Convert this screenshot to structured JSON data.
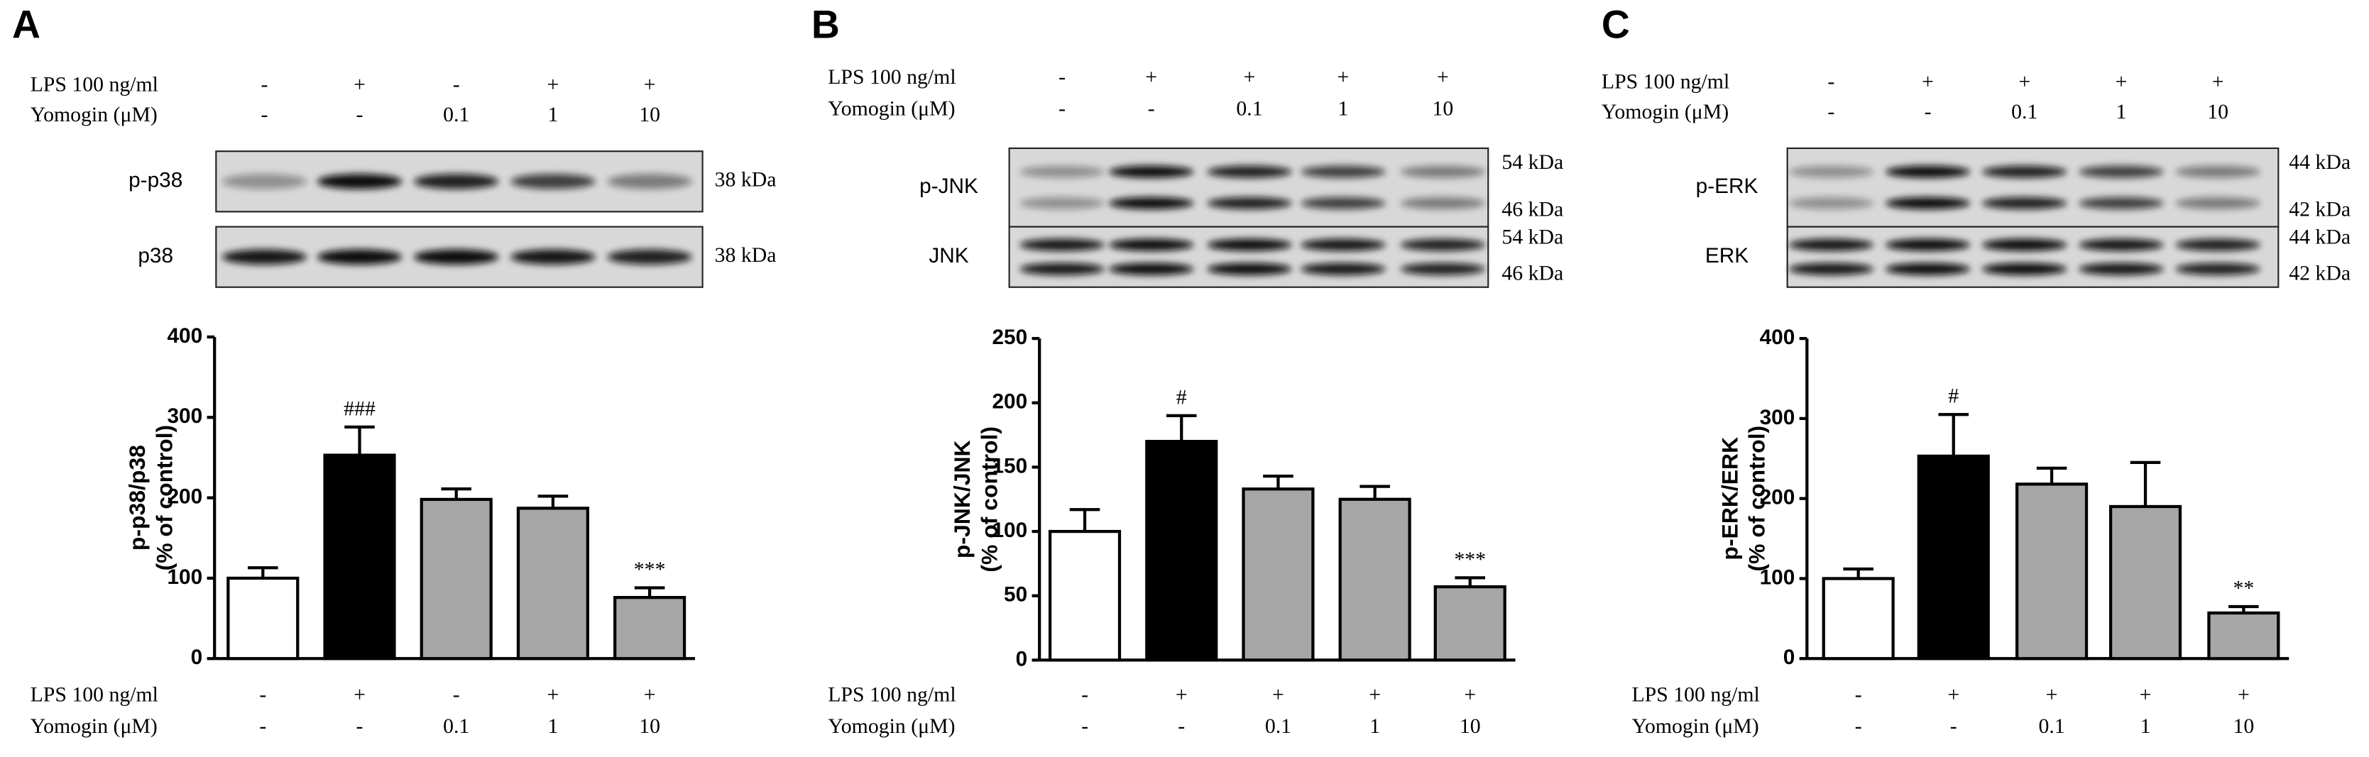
{
  "chart_data": [
    {
      "type": "bar",
      "panel": "A",
      "ylabel": [
        "p-p38/p38",
        "(% of control)"
      ],
      "treatments": [
        {
          "label": "LPS 100 ng/ml",
          "values": [
            "-",
            "+",
            "-",
            "+",
            "+"
          ]
        },
        {
          "label": "Yomogin (μM)",
          "values": [
            "-",
            "-",
            "0.1",
            "1",
            "10"
          ]
        }
      ],
      "blots": [
        {
          "label": "p-p38",
          "kda": [
            "38 kDa"
          ]
        },
        {
          "label": "p38",
          "kda": [
            "38 kDa"
          ]
        }
      ],
      "values": [
        100,
        253,
        198,
        187,
        76
      ],
      "errors": [
        13,
        35,
        13,
        15,
        12
      ],
      "annotations": [
        null,
        "###",
        null,
        null,
        "***"
      ],
      "colors": [
        "#ffffff",
        "#000000",
        "#a6a6a6",
        "#a6a6a6",
        "#a6a6a6"
      ],
      "ylim": [
        0,
        400
      ],
      "yticks": [
        0,
        100,
        200,
        300,
        400
      ]
    },
    {
      "type": "bar",
      "panel": "B",
      "ylabel": [
        "p-JNK/JNK",
        "(% of control)"
      ],
      "treatments": [
        {
          "label": "LPS 100 ng/ml",
          "values": [
            "-",
            "+",
            "+",
            "+",
            "+"
          ]
        },
        {
          "label": "Yomogin (μM)",
          "values": [
            "-",
            "-",
            "0.1",
            "1",
            "10"
          ]
        }
      ],
      "blots": [
        {
          "label": "p-JNK",
          "kda": [
            "54 kDa",
            "46 kDa"
          ]
        },
        {
          "label": "JNK",
          "kda": [
            "54 kDa",
            "46 kDa"
          ]
        }
      ],
      "values": [
        100,
        170,
        133,
        125,
        57
      ],
      "errors": [
        17,
        20,
        10,
        10,
        7
      ],
      "annotations": [
        null,
        "#",
        null,
        null,
        "***"
      ],
      "colors": [
        "#ffffff",
        "#000000",
        "#a6a6a6",
        "#a6a6a6",
        "#a6a6a6"
      ],
      "ylim": [
        0,
        250
      ],
      "yticks": [
        0,
        50,
        100,
        150,
        200,
        250
      ]
    },
    {
      "type": "bar",
      "panel": "C",
      "ylabel": [
        "p-ERK/ERK",
        "(% of control)"
      ],
      "treatments": [
        {
          "label": "LPS 100 ng/ml",
          "values": [
            "-",
            "+",
            "+",
            "+",
            "+"
          ]
        },
        {
          "label": "Yomogin (μM)",
          "values": [
            "-",
            "-",
            "0.1",
            "1",
            "10"
          ]
        }
      ],
      "blots": [
        {
          "label": "p-ERK",
          "kda": [
            "44 kDa",
            "42 kDa"
          ]
        },
        {
          "label": "ERK",
          "kda": [
            "44 kDa",
            "42 kDa"
          ]
        }
      ],
      "values": [
        100,
        253,
        218,
        190,
        57
      ],
      "errors": [
        12,
        52,
        20,
        55,
        8
      ],
      "annotations": [
        null,
        "#",
        null,
        null,
        "**"
      ],
      "colors": [
        "#ffffff",
        "#000000",
        "#a6a6a6",
        "#a6a6a6",
        "#a6a6a6"
      ],
      "ylim": [
        0,
        400
      ],
      "yticks": [
        0,
        100,
        200,
        300,
        400
      ]
    }
  ]
}
